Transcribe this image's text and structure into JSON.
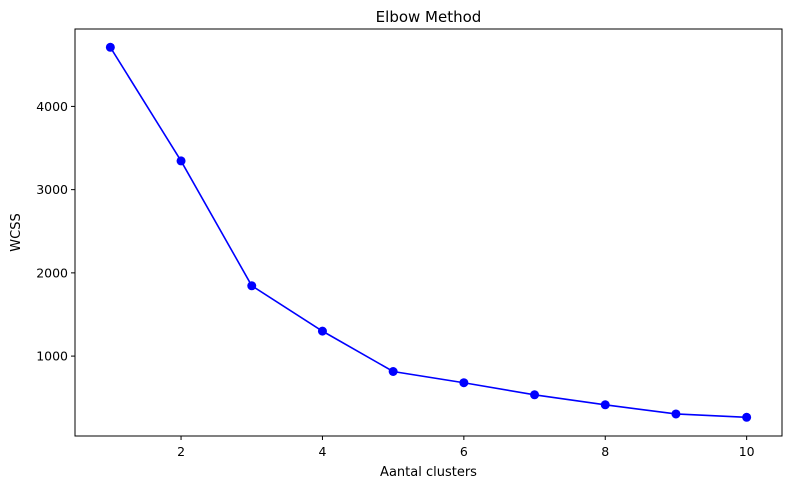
{
  "chart_data": {
    "type": "line",
    "title": "Elbow Method",
    "xlabel": "Aantal clusters",
    "ylabel": "WCSS",
    "x": [
      1,
      2,
      3,
      4,
      5,
      6,
      7,
      8,
      9,
      10
    ],
    "y": [
      4710,
      3345,
      1845,
      1300,
      815,
      680,
      535,
      415,
      305,
      265
    ],
    "xlim": [
      0.5,
      10.5
    ],
    "ylim": [
      40,
      4930
    ],
    "xticks": [
      2,
      4,
      6,
      8,
      10
    ],
    "yticks": [
      1000,
      2000,
      3000,
      4000
    ],
    "grid": false,
    "series_color": "#0000ff",
    "marker": "circle"
  }
}
